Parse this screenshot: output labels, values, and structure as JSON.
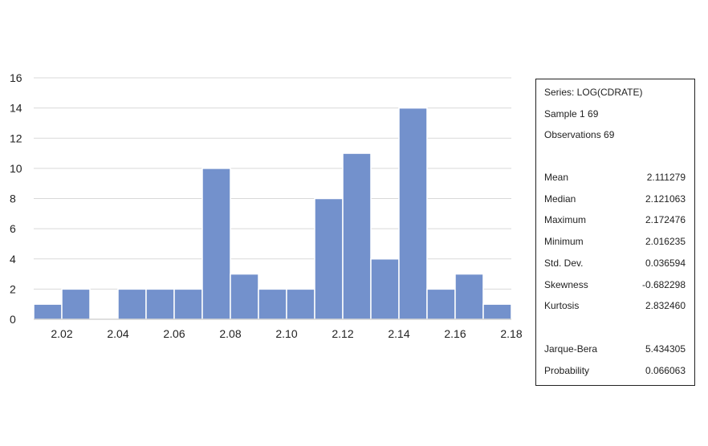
{
  "chart_data": {
    "type": "bar",
    "bin_width": 0.01,
    "bin_starts": [
      2.01,
      2.02,
      2.03,
      2.04,
      2.05,
      2.06,
      2.07,
      2.08,
      2.09,
      2.1,
      2.11,
      2.12,
      2.13,
      2.14,
      2.15,
      2.16,
      2.17
    ],
    "values": [
      1,
      2,
      0,
      2,
      2,
      2,
      10,
      3,
      2,
      2,
      8,
      11,
      4,
      14,
      2,
      3,
      1
    ],
    "xlim": [
      2.01,
      2.18
    ],
    "ylim": [
      0,
      16
    ],
    "x_ticks": [
      "2.02",
      "2.04",
      "2.06",
      "2.08",
      "2.10",
      "2.12",
      "2.14",
      "2.16",
      "2.18"
    ],
    "y_ticks": [
      "0",
      "2",
      "4",
      "6",
      "8",
      "10",
      "12",
      "14",
      "16"
    ],
    "grid": true,
    "bar_color": "#7391cc",
    "bar_edge_color": "#ffffff",
    "grid_color": "#d9d9d9"
  },
  "stats": {
    "series": "Series: LOG(CDRATE)",
    "sample": "Sample 1 69",
    "observations": "Observations 69",
    "rows": [
      {
        "label": "Mean",
        "value": "2.111279"
      },
      {
        "label": "Median",
        "value": "2.121063"
      },
      {
        "label": "Maximum",
        "value": "2.172476"
      },
      {
        "label": "Minimum",
        "value": "2.016235"
      },
      {
        "label": "Std. Dev.",
        "value": "0.036594"
      },
      {
        "label": "Skewness",
        "value": "-0.682298"
      },
      {
        "label": "Kurtosis",
        "value": "2.832460"
      },
      {
        "label": "Jarque-Bera",
        "value": "5.434305"
      },
      {
        "label": "Probability",
        "value": "0.066063"
      }
    ]
  }
}
